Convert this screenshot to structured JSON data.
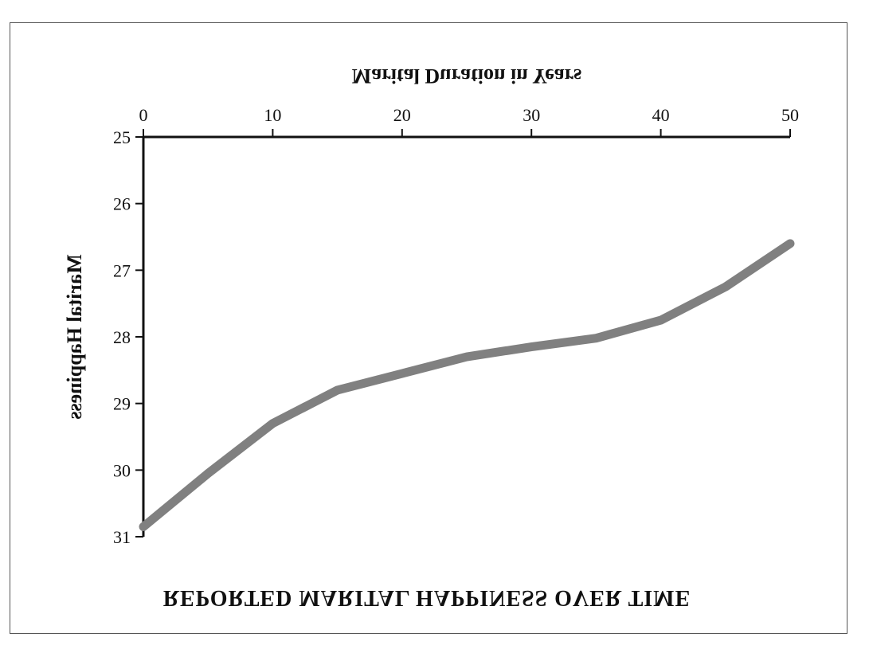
{
  "chart_data": {
    "type": "line",
    "title": "REPORTED MARITAL HAPPINESS OVER TIME",
    "xlabel": "Marital Duration in Years",
    "ylabel": "Marital Happiness",
    "xlim": [
      0,
      50
    ],
    "ylim": [
      25,
      31
    ],
    "x_ticks": [
      "0",
      "10",
      "20",
      "30",
      "40",
      "50"
    ],
    "y_ticks": [
      "25",
      "26",
      "27",
      "28",
      "29",
      "30",
      "31"
    ],
    "orientation": "flipped vertically (text upside down)",
    "grid": false,
    "line_color": "#808080",
    "series": [
      {
        "x": [
          0,
          5,
          10,
          15,
          20,
          25,
          30,
          35,
          40,
          45,
          50
        ],
        "values": [
          30.85,
          30.05,
          29.3,
          28.8,
          28.55,
          28.3,
          28.15,
          28.02,
          27.75,
          27.25,
          26.6
        ]
      }
    ]
  }
}
